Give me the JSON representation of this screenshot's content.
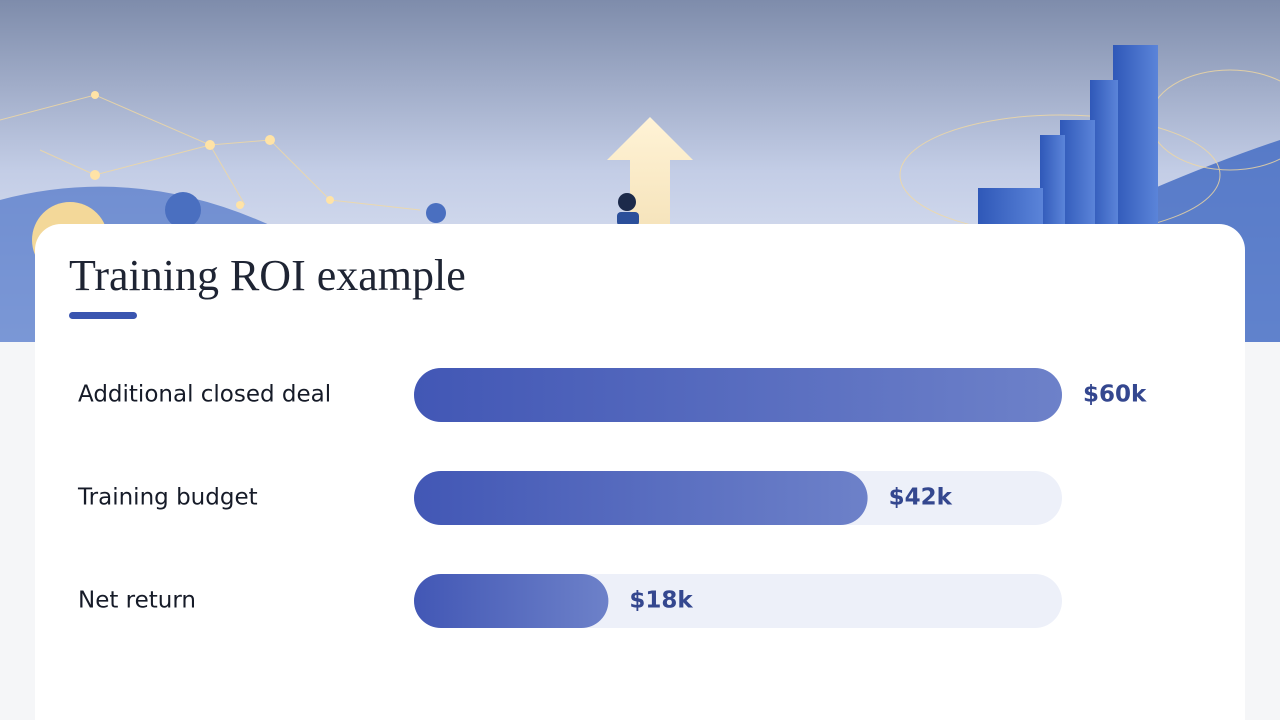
{
  "chart_data": {
    "type": "bar",
    "orientation": "horizontal",
    "title": "Training ROI example",
    "categories": [
      "Additional closed deal",
      "Training budget",
      "Net return"
    ],
    "values": [
      60,
      42,
      18
    ],
    "value_labels": [
      "$60k",
      "$42k",
      "$18k"
    ],
    "color": "#4a5fb8"
  }
}
